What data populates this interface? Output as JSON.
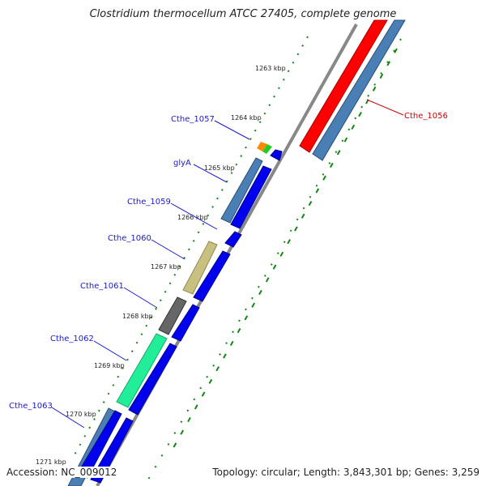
{
  "title": "Clostridium thermocellum ATCC 27405, complete genome",
  "footer": {
    "accession": "Accession: NC_009012",
    "summary": "Topology: circular; Length: 3,843,301 bp; Genes: 3,259"
  },
  "kbp_ticks": [
    "1263 kbp",
    "1264 kbp",
    "1265 kbp",
    "1266 kbp",
    "1267 kbp",
    "1268 kbp",
    "1269 kbp",
    "1270 kbp",
    "1271 kbp"
  ],
  "genes": [
    {
      "name": "Cthe_1056",
      "color": "#cc0000"
    },
    {
      "name": "Cthe_1057",
      "color": "#1a1acc"
    },
    {
      "name": "glyA",
      "color": "#1a1acc"
    },
    {
      "name": "Cthe_1059",
      "color": "#1a1acc"
    },
    {
      "name": "Cthe_1060",
      "color": "#1a1acc"
    },
    {
      "name": "Cthe_1061",
      "color": "#1a1acc"
    },
    {
      "name": "Cthe_1062",
      "color": "#1a1acc"
    },
    {
      "name": "Cthe_1063",
      "color": "#1a1acc"
    }
  ],
  "colors": {
    "forward_cds": "#ff0000",
    "reverse_cds": "#0000ee",
    "category_blue": "#4a7fb5",
    "category_khaki": "#c8c080",
    "category_gray": "#666666",
    "category_green": "#22ee99",
    "gc_skew": "#118811",
    "backbone": "#888888"
  }
}
